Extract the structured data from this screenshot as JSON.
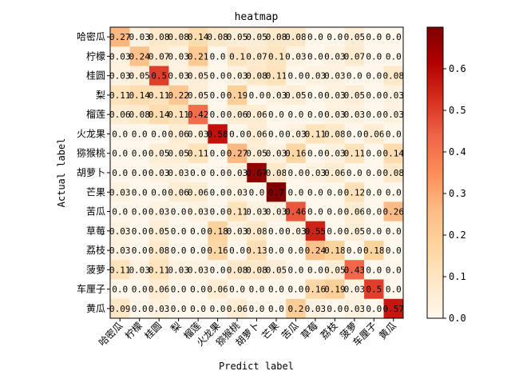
{
  "chart_data": {
    "type": "heatmap",
    "title": "heatmap",
    "xlabel": "Predict label",
    "ylabel": "Actual label",
    "x_categories": [
      "哈密瓜",
      "柠檬",
      "桂圆",
      "梨",
      "榴莲",
      "火龙果",
      "猕猴桃",
      "胡萝卜",
      "芒果",
      "苦瓜",
      "草莓",
      "荔枝",
      "菠萝",
      "车厘子",
      "黄瓜"
    ],
    "y_categories": [
      "哈密瓜",
      "柠檬",
      "桂圆",
      "梨",
      "榴莲",
      "火龙果",
      "猕猴桃",
      "胡萝卜",
      "芒果",
      "苦瓜",
      "草莓",
      "荔枝",
      "菠萝",
      "车厘子",
      "黄瓜"
    ],
    "values": [
      [
        0.27,
        0.03,
        0.08,
        0.08,
        0.14,
        0.08,
        0.05,
        0.05,
        0.08,
        0.08,
        0.0,
        0.0,
        0.05,
        0.0,
        0.0
      ],
      [
        0.03,
        0.24,
        0.07,
        0.03,
        0.21,
        0.0,
        0.1,
        0.07,
        0.1,
        0.03,
        0.0,
        0.03,
        0.07,
        0.0,
        0.0
      ],
      [
        0.03,
        0.05,
        0.5,
        0.03,
        0.05,
        0.0,
        0.03,
        0.08,
        0.11,
        0.0,
        0.03,
        0.03,
        0.0,
        0.0,
        0.08
      ],
      [
        0.11,
        0.14,
        0.11,
        0.22,
        0.05,
        0.0,
        0.19,
        0.0,
        0.03,
        0.05,
        0.0,
        0.03,
        0.05,
        0.0,
        0.03
      ],
      [
        0.06,
        0.08,
        0.14,
        0.11,
        0.42,
        0.0,
        0.06,
        0.06,
        0.0,
        0.0,
        0.0,
        0.03,
        0.03,
        0.0,
        0.03
      ],
      [
        0.0,
        0.0,
        0.0,
        0.06,
        0.03,
        0.58,
        0.0,
        0.06,
        0.0,
        0.03,
        0.11,
        0.08,
        0.0,
        0.06,
        0.0
      ],
      [
        0.0,
        0.0,
        0.05,
        0.05,
        0.11,
        0.0,
        0.27,
        0.05,
        0.03,
        0.16,
        0.0,
        0.03,
        0.11,
        0.0,
        0.14
      ],
      [
        0.0,
        0.0,
        0.03,
        0.03,
        0.0,
        0.0,
        0.03,
        0.67,
        0.08,
        0.0,
        0.03,
        0.06,
        0.0,
        0.0,
        0.08
      ],
      [
        0.03,
        0.0,
        0.0,
        0.06,
        0.06,
        0.0,
        0.03,
        0.0,
        0.7,
        0.0,
        0.0,
        0.0,
        0.12,
        0.0,
        0.0
      ],
      [
        0.0,
        0.0,
        0.03,
        0.0,
        0.03,
        0.0,
        0.11,
        0.03,
        0.03,
        0.46,
        0.0,
        0.0,
        0.06,
        0.0,
        0.26
      ],
      [
        0.03,
        0.0,
        0.05,
        0.0,
        0.0,
        0.18,
        0.03,
        0.08,
        0.0,
        0.03,
        0.55,
        0.0,
        0.05,
        0.0,
        0.0
      ],
      [
        0.03,
        0.0,
        0.08,
        0.0,
        0.0,
        0.16,
        0.0,
        0.13,
        0.0,
        0.0,
        0.24,
        0.18,
        0.0,
        0.18,
        0.0
      ],
      [
        0.11,
        0.03,
        0.11,
        0.03,
        0.03,
        0.0,
        0.08,
        0.08,
        0.05,
        0.0,
        0.0,
        0.05,
        0.43,
        0.0,
        0.0
      ],
      [
        0.0,
        0.0,
        0.06,
        0.0,
        0.0,
        0.06,
        0.0,
        0.0,
        0.0,
        0.0,
        0.16,
        0.19,
        0.03,
        0.5,
        0.0
      ],
      [
        0.09,
        0.0,
        0.03,
        0.0,
        0.0,
        0.0,
        0.06,
        0.0,
        0.0,
        0.2,
        0.03,
        0.0,
        0.03,
        0.0,
        0.57
      ]
    ],
    "colormap": "OrRd",
    "vmin": 0,
    "vmax": 0.7,
    "colorbar_ticks": [
      "0.0",
      "0.1",
      "0.2",
      "0.3",
      "0.4",
      "0.5",
      "0.6"
    ],
    "grid": false,
    "legend": "colorbar-right"
  }
}
